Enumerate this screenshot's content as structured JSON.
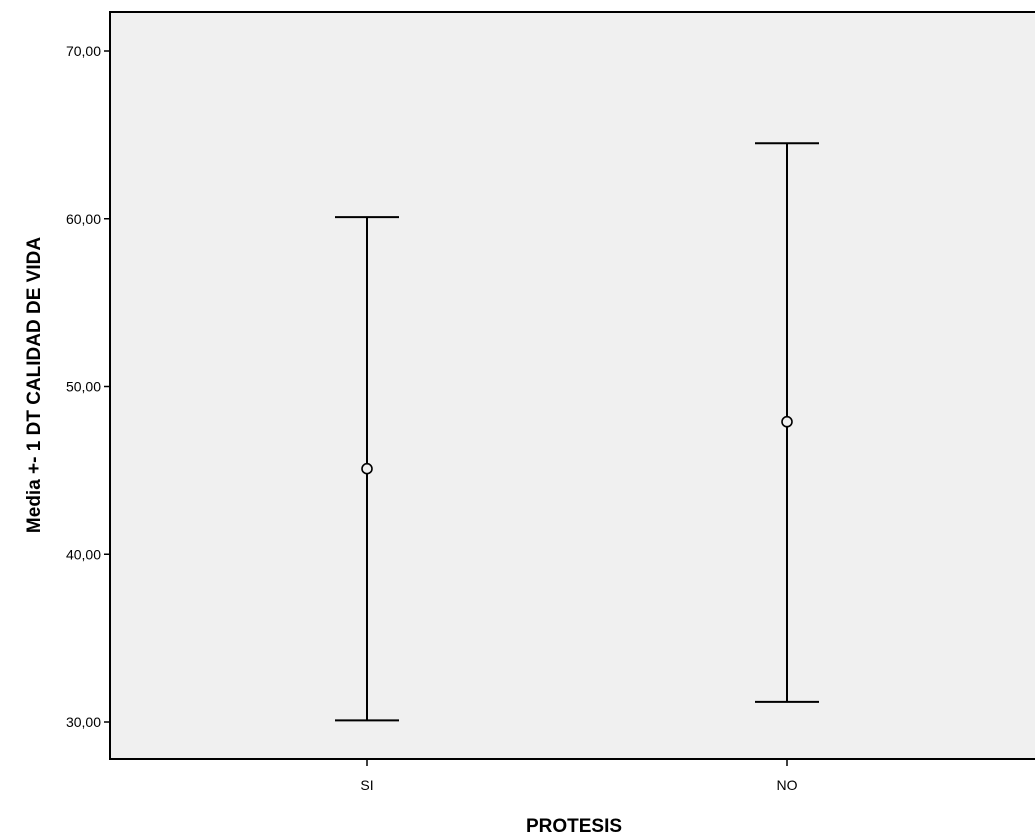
{
  "chart_data": {
    "type": "errorbar",
    "xlabel": "PROTESIS",
    "ylabel": "Media +- 1 DT CALIDAD DE VIDA",
    "categories": [
      "SI",
      "NO"
    ],
    "series": [
      {
        "mean": [
          45.1,
          47.9
        ],
        "lower": [
          30.1,
          31.2
        ],
        "upper": [
          60.1,
          64.5
        ]
      }
    ],
    "ylim": [
      27.8,
      72.3
    ],
    "yticks": [
      30,
      40,
      50,
      60,
      70
    ],
    "ytick_labels": [
      "30,00",
      "40,00",
      "50,00",
      "60,00",
      "70,00"
    ],
    "grid": false,
    "legend": "none",
    "colors": {
      "plot_background": "#f0f0f0",
      "line": "#000000"
    }
  }
}
